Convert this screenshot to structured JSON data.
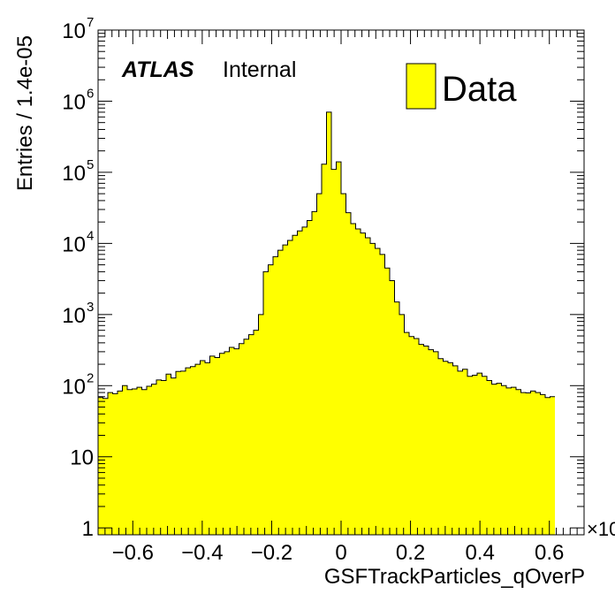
{
  "chart_data": {
    "type": "histogram",
    "title": "",
    "xlabel": "GSFTrackParticles_qOverP",
    "ylabel": "Entries / 1.4e-05",
    "x_multiplier_label": "×10",
    "xlim": [
      -0.7,
      0.7
    ],
    "ylim": [
      0.8,
      10000000
    ],
    "y_scale": "log",
    "x_ticks": [
      "−0.6",
      "−0.4",
      "−0.2",
      "0",
      "0.2",
      "0.4",
      "0.6"
    ],
    "x_tick_values": [
      -0.6,
      -0.4,
      -0.2,
      0,
      0.2,
      0.4,
      0.6
    ],
    "y_ticks": [
      {
        "value": 1,
        "base": "1",
        "exp": ""
      },
      {
        "value": 10,
        "base": "10",
        "exp": ""
      },
      {
        "value": 100,
        "base": "10",
        "exp": "2"
      },
      {
        "value": 1000,
        "base": "10",
        "exp": "3"
      },
      {
        "value": 10000,
        "base": "10",
        "exp": "4"
      },
      {
        "value": 100000,
        "base": "10",
        "exp": "5"
      },
      {
        "value": 1000000,
        "base": "10",
        "exp": "6"
      },
      {
        "value": 10000000,
        "base": "10",
        "exp": "7"
      }
    ],
    "fill_color": "#ffff00",
    "line_color": "#000000",
    "series": [
      {
        "name": "Data",
        "bin_width": 0.014,
        "x_start": -0.7,
        "values": [
          68,
          66,
          80,
          77,
          84,
          100,
          88,
          90,
          95,
          88,
          98,
          105,
          120,
          118,
          145,
          128,
          158,
          160,
          178,
          185,
          200,
          225,
          210,
          260,
          248,
          285,
          300,
          345,
          330,
          390,
          450,
          520,
          600,
          1000,
          4000,
          5000,
          6500,
          8000,
          9500,
          11000,
          13000,
          15000,
          17000,
          21000,
          28000,
          50000,
          130000,
          700000,
          110000,
          140000,
          50000,
          27000,
          19000,
          16000,
          14000,
          12000,
          10000,
          8500,
          7000,
          4500,
          3000,
          1500,
          1000,
          560,
          490,
          460,
          380,
          360,
          320,
          300,
          240,
          220,
          210,
          190,
          160,
          170,
          135,
          140,
          150,
          135,
          118,
          105,
          108,
          100,
          93,
          95,
          88,
          80,
          79,
          84,
          80,
          75,
          68,
          70
        ]
      }
    ],
    "legend": {
      "position": "top-right",
      "label": "Data"
    },
    "annotations": {
      "experiment": "ATLAS",
      "status": "Internal"
    }
  }
}
